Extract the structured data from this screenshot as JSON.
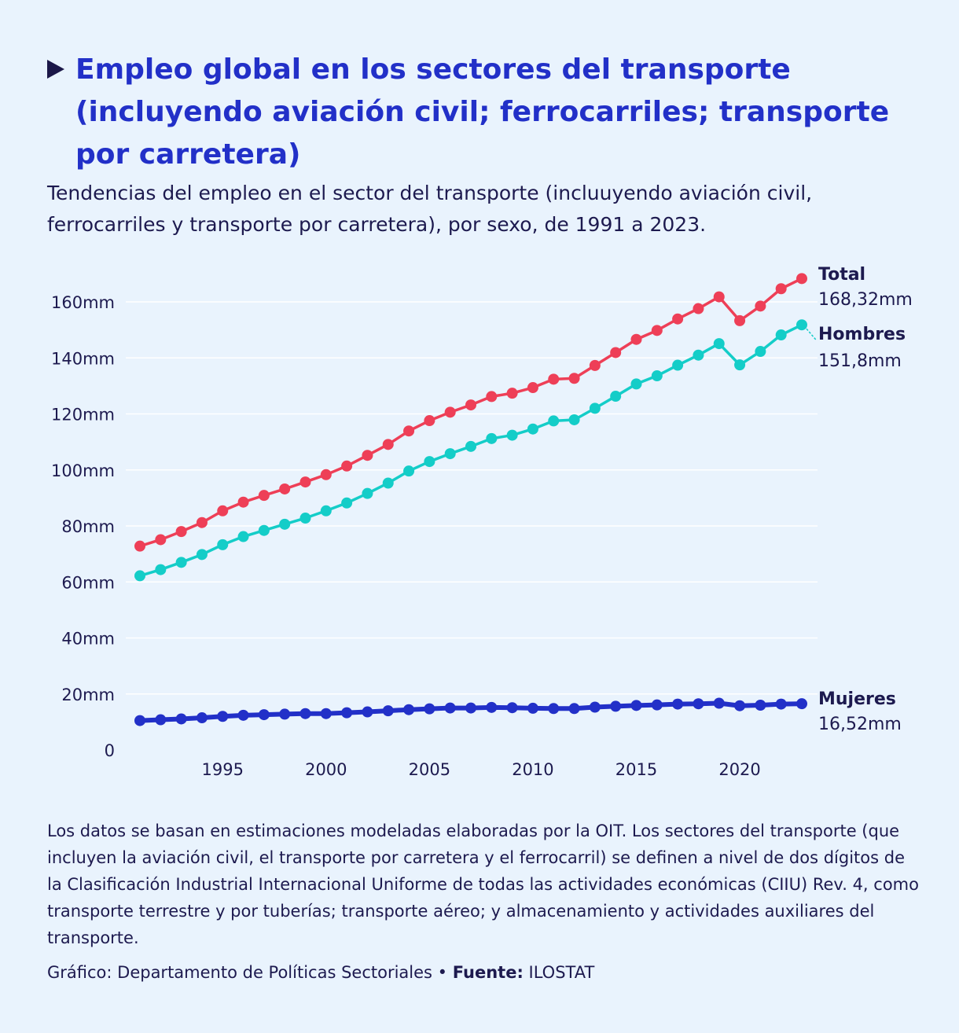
{
  "header": {
    "title": "Empleo global en los sectores del transporte (incluyendo aviación civil; ferrocarriles; transporte por carretera)",
    "subtitle": "Tendencias del empleo en el sector del transporte (incluuyendo aviación civil, ferrocarriles y transporte por carretera), por sexo, de 1991 a 2023."
  },
  "footer": {
    "note": "Los datos se basan en estimaciones modeladas elaboradas por la OIT. Los sectores del transporte (que incluyen la aviación civil, el transporte por carretera y el ferrocarril) se definen a nivel de dos dígitos de la Clasificación Industrial Internacional Uniforme de todas las actividades económicas (CIIU) Rev. 4, como transporte terrestre y por tuberías; transporte aéreo; y almacenamiento y actividades auxiliares del transporte.",
    "credit_prefix": "Gráfico: Departamento de Políticas Sectoriales • ",
    "source_label": "Fuente:",
    "source_value": " ILOSTAT"
  },
  "colors": {
    "background": "#e9f3fd",
    "title": "#2230c8",
    "total": "#ee3f57",
    "hombres": "#14cdc8",
    "mujeres": "#2230c8",
    "grid": "#ffffff",
    "text": "#1d1a4f"
  },
  "chart_data": {
    "type": "line",
    "title": "Empleo global en los sectores del transporte",
    "xlabel": "",
    "ylabel": "",
    "ylim": [
      0,
      160
    ],
    "xlim": [
      1991,
      2023
    ],
    "y_ticks": [
      0,
      20,
      40,
      60,
      80,
      100,
      120,
      140,
      160
    ],
    "y_tick_labels": [
      "0",
      "20mm",
      "40mm",
      "60mm",
      "80mm",
      "100mm",
      "120mm",
      "140mm",
      "160mm"
    ],
    "x_ticks": [
      1995,
      2000,
      2005,
      2010,
      2015,
      2020
    ],
    "x_tick_labels": [
      "1995",
      "2000",
      "2005",
      "2010",
      "2015",
      "2020"
    ],
    "x": [
      1991,
      1992,
      1993,
      1994,
      1995,
      1996,
      1997,
      1998,
      1999,
      2000,
      2001,
      2002,
      2003,
      2004,
      2005,
      2006,
      2007,
      2008,
      2009,
      2010,
      2011,
      2012,
      2013,
      2014,
      2015,
      2016,
      2017,
      2018,
      2019,
      2020,
      2021,
      2022,
      2023
    ],
    "series": [
      {
        "name": "Total",
        "end_label": "168,32mm",
        "color": "#ee3f57",
        "values": [
          72.8,
          75.1,
          78.0,
          81.2,
          85.4,
          88.5,
          90.9,
          93.2,
          95.7,
          98.3,
          101.4,
          105.2,
          109.1,
          113.9,
          117.6,
          120.6,
          123.2,
          126.2,
          127.4,
          129.4,
          132.4,
          132.7,
          137.3,
          141.9,
          146.6,
          149.8,
          153.9,
          157.6,
          161.8,
          153.3,
          158.5,
          164.7,
          168.32
        ]
      },
      {
        "name": "Hombres",
        "end_label": "151,8mm",
        "color": "#14cdc8",
        "values": [
          62.2,
          64.4,
          67.0,
          69.8,
          73.3,
          76.2,
          78.4,
          80.6,
          82.8,
          85.4,
          88.2,
          91.6,
          95.3,
          99.6,
          103.0,
          105.8,
          108.4,
          111.2,
          112.4,
          114.6,
          117.5,
          117.9,
          122.0,
          126.3,
          130.7,
          133.6,
          137.4,
          141.0,
          145.1,
          137.5,
          142.3,
          148.2,
          151.8
        ]
      },
      {
        "name": "Mujeres",
        "end_label": "16,52mm",
        "color": "#2230c8",
        "values": [
          10.5,
          10.8,
          11.1,
          11.5,
          12.0,
          12.4,
          12.6,
          12.8,
          13.0,
          13.0,
          13.3,
          13.6,
          14.0,
          14.4,
          14.7,
          15.0,
          15.0,
          15.2,
          15.1,
          14.9,
          14.8,
          14.8,
          15.3,
          15.6,
          15.9,
          16.1,
          16.4,
          16.5,
          16.7,
          15.8,
          16.0,
          16.4,
          16.52
        ]
      }
    ]
  }
}
